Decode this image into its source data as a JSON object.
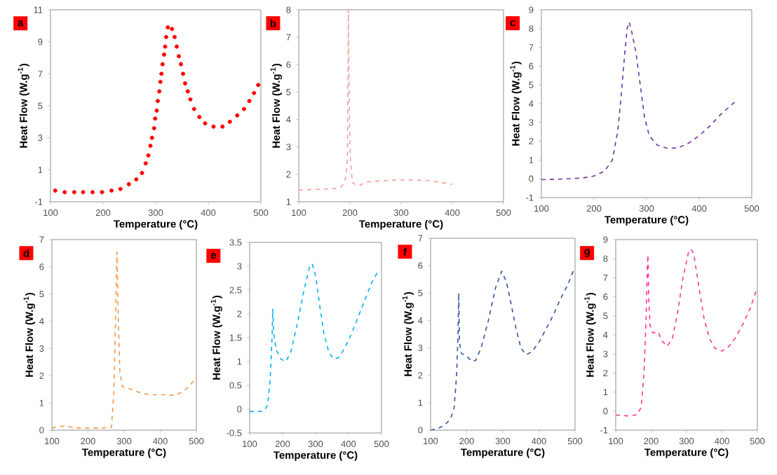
{
  "chart_data": [
    {
      "type": "scatter",
      "marker": "circle",
      "annotations": [
        "a"
      ],
      "xlabel": "Temperature (°C)",
      "ylabel": "Heat Flow (W.g$^{-1}$)",
      "xlim": [
        100,
        500
      ],
      "ylim": [
        -1,
        11
      ],
      "xticks": [
        100,
        200,
        300,
        400,
        500
      ],
      "yticks": [
        -1,
        1,
        3,
        5,
        7,
        9,
        11
      ],
      "series": [
        {
          "color": "#ff0000",
          "x": [
            109,
            127,
            145,
            162,
            180,
            198,
            216,
            233,
            249,
            263,
            274,
            281,
            286,
            290,
            293,
            297,
            299,
            302,
            304,
            307,
            309,
            311,
            313,
            316,
            318,
            320,
            323,
            331,
            336,
            340,
            344,
            348,
            352,
            356,
            361,
            366,
            373,
            383,
            394,
            410,
            427,
            441,
            455,
            468,
            478,
            487,
            495
          ],
          "values": [
            -0.3,
            -0.4,
            -0.4,
            -0.4,
            -0.4,
            -0.4,
            -0.3,
            -0.2,
            0.1,
            0.4,
            0.8,
            1.4,
            1.9,
            2.5,
            3.0,
            3.6,
            4.2,
            4.7,
            5.3,
            5.9,
            6.5,
            7.0,
            7.6,
            8.2,
            8.7,
            9.3,
            9.9,
            9.8,
            9.3,
            8.7,
            8.1,
            7.6,
            7.0,
            6.4,
            5.9,
            5.4,
            4.8,
            4.3,
            3.9,
            3.7,
            3.7,
            4.0,
            4.4,
            4.8,
            5.3,
            5.8,
            6.3
          ]
        }
      ]
    },
    {
      "type": "line",
      "line_style": "dashed",
      "annotations": [
        "b"
      ],
      "xlabel": "Temperature (°C)",
      "ylabel": "Heat Flow (W.g$^{-1}$)",
      "xlim": [
        100,
        500
      ],
      "ylim": [
        1,
        8
      ],
      "xticks": [
        100,
        200,
        300,
        400,
        500
      ],
      "yticks": [
        1,
        2,
        3,
        4,
        5,
        6,
        7,
        8
      ],
      "series": [
        {
          "color": "#ff9999",
          "x": [
            100,
            130,
            160,
            180,
            188,
            192,
            195,
            197,
            199,
            201,
            205,
            212,
            220,
            230,
            250,
            300,
            350,
            380,
            400
          ],
          "values": [
            1.42,
            1.45,
            1.47,
            1.5,
            1.65,
            1.9,
            2.5,
            8.0,
            4.0,
            2.5,
            1.7,
            1.6,
            1.6,
            1.72,
            1.75,
            1.8,
            1.78,
            1.7,
            1.63
          ]
        }
      ]
    },
    {
      "type": "line",
      "line_style": "dashed",
      "annotations": [
        "c"
      ],
      "xlabel": "Temperature (°C)",
      "ylabel": "Heat Flow (W.g$^{-1}$)",
      "xlim": [
        100,
        500
      ],
      "ylim": [
        -1,
        9
      ],
      "xticks": [
        100,
        200,
        300,
        400,
        500
      ],
      "yticks": [
        -1,
        0,
        1,
        2,
        3,
        4,
        5,
        6,
        7,
        8,
        9
      ],
      "series": [
        {
          "color": "#7030a0",
          "x": [
            100,
            150,
            180,
            200,
            220,
            235,
            245,
            252,
            258,
            263,
            267,
            272,
            280,
            288,
            296,
            305,
            320,
            340,
            360,
            380,
            400,
            420,
            440,
            460,
            470
          ],
          "values": [
            -0.05,
            0,
            0.05,
            0.15,
            0.4,
            1.0,
            2.5,
            4.5,
            6.5,
            8.0,
            8.35,
            7.8,
            6.7,
            5.0,
            3.3,
            2.3,
            1.8,
            1.62,
            1.65,
            1.9,
            2.3,
            2.8,
            3.4,
            3.9,
            4.15
          ]
        }
      ]
    },
    {
      "type": "line",
      "line_style": "dashed",
      "annotations": [
        "d"
      ],
      "xlabel": "Temperature (°C)",
      "ylabel": "Heat Flow (W.g$^{-1}$)",
      "xlim": [
        100,
        500
      ],
      "ylim": [
        0,
        7
      ],
      "xticks": [
        100,
        200,
        300,
        400,
        500
      ],
      "yticks": [
        0,
        1,
        2,
        3,
        4,
        5,
        6,
        7
      ],
      "series": [
        {
          "color": "#f79646",
          "x": [
            100,
            115,
            130,
            150,
            170,
            200,
            240,
            265,
            272,
            276,
            280,
            284,
            288,
            295,
            320,
            350,
            380,
            410,
            440,
            460,
            480,
            500
          ],
          "values": [
            0.08,
            0.12,
            0.15,
            0.12,
            0.08,
            0.08,
            0.08,
            0.1,
            1.5,
            4.0,
            6.55,
            4.0,
            2.2,
            1.6,
            1.5,
            1.35,
            1.3,
            1.3,
            1.28,
            1.4,
            1.6,
            1.95
          ]
        }
      ]
    },
    {
      "type": "line",
      "line_style": "dashed",
      "annotations": [
        "e"
      ],
      "xlabel": "Temperature (°C)",
      "ylabel": "Heat Flow (W.g$^{-1}$)",
      "xlim": [
        100,
        500
      ],
      "ylim": [
        -0.5,
        3.5
      ],
      "xticks": [
        100,
        200,
        300,
        400,
        500
      ],
      "yticks": [
        -0.5,
        0,
        0.5,
        1,
        1.5,
        2,
        2.5,
        3,
        3.5
      ],
      "series": [
        {
          "color": "#00b0f0",
          "x": [
            100,
            130,
            145,
            155,
            162,
            168,
            170,
            173,
            180,
            195,
            210,
            225,
            245,
            265,
            282,
            290,
            300,
            312,
            325,
            340,
            355,
            370,
            390,
            410,
            430,
            450,
            470,
            490
          ],
          "values": [
            -0.05,
            -0.05,
            -0.03,
            0.1,
            0.6,
            1.5,
            2.1,
            1.6,
            1.25,
            1.05,
            1.0,
            1.2,
            1.8,
            2.5,
            3.0,
            3.05,
            2.8,
            2.2,
            1.6,
            1.2,
            1.05,
            1.08,
            1.3,
            1.6,
            1.95,
            2.3,
            2.65,
            2.9
          ]
        }
      ]
    },
    {
      "type": "line",
      "line_style": "dashed",
      "annotations": [
        "f"
      ],
      "xlabel": "Temperature (°C)",
      "ylabel": "Heat Flow (W.g$^{-1}$)",
      "xlim": [
        100,
        500
      ],
      "ylim": [
        0,
        7
      ],
      "xticks": [
        100,
        200,
        300,
        400,
        500
      ],
      "yticks": [
        0,
        1,
        2,
        3,
        4,
        5,
        6,
        7
      ],
      "series": [
        {
          "color": "#2f5597",
          "x": [
            100,
            120,
            140,
            155,
            165,
            172,
            176,
            178,
            180,
            185,
            200,
            215,
            225,
            240,
            260,
            280,
            297,
            310,
            320,
            335,
            350,
            364,
            380,
            400,
            420,
            440,
            460,
            480,
            495
          ],
          "values": [
            0,
            0.05,
            0.2,
            0.4,
            0.8,
            2.0,
            3.5,
            5.0,
            3.2,
            2.8,
            2.7,
            2.5,
            2.55,
            3.0,
            4.0,
            5.2,
            5.8,
            5.4,
            4.8,
            3.8,
            3.0,
            2.75,
            2.85,
            3.2,
            3.7,
            4.2,
            4.8,
            5.3,
            5.8
          ]
        }
      ]
    },
    {
      "type": "line",
      "line_style": "dashed",
      "annotations": [
        "g"
      ],
      "xlabel": "Temperature (°C)",
      "ylabel": "Heat Flow (W.g$^{-1}$)",
      "xlim": [
        100,
        500
      ],
      "ylim": [
        -1,
        9
      ],
      "xticks": [
        100,
        200,
        300,
        400,
        500
      ],
      "yticks": [
        -1,
        0,
        1,
        2,
        3,
        4,
        5,
        6,
        7,
        8,
        9
      ],
      "series": [
        {
          "color": "#ff3399",
          "x": [
            100,
            130,
            160,
            172,
            180,
            186,
            189,
            191,
            193,
            197,
            205,
            220,
            230,
            245,
            260,
            275,
            290,
            305,
            312,
            320,
            335,
            350,
            365,
            380,
            400,
            420,
            440,
            460,
            480,
            500
          ],
          "values": [
            -0.2,
            -0.25,
            -0.2,
            0.2,
            2.0,
            5.0,
            7.5,
            8.2,
            6.0,
            4.5,
            4.1,
            4.15,
            3.7,
            3.4,
            3.8,
            5.2,
            7.0,
            8.3,
            8.5,
            8.3,
            6.5,
            4.8,
            3.8,
            3.3,
            3.15,
            3.4,
            3.9,
            4.6,
            5.4,
            6.5
          ]
        }
      ]
    }
  ]
}
